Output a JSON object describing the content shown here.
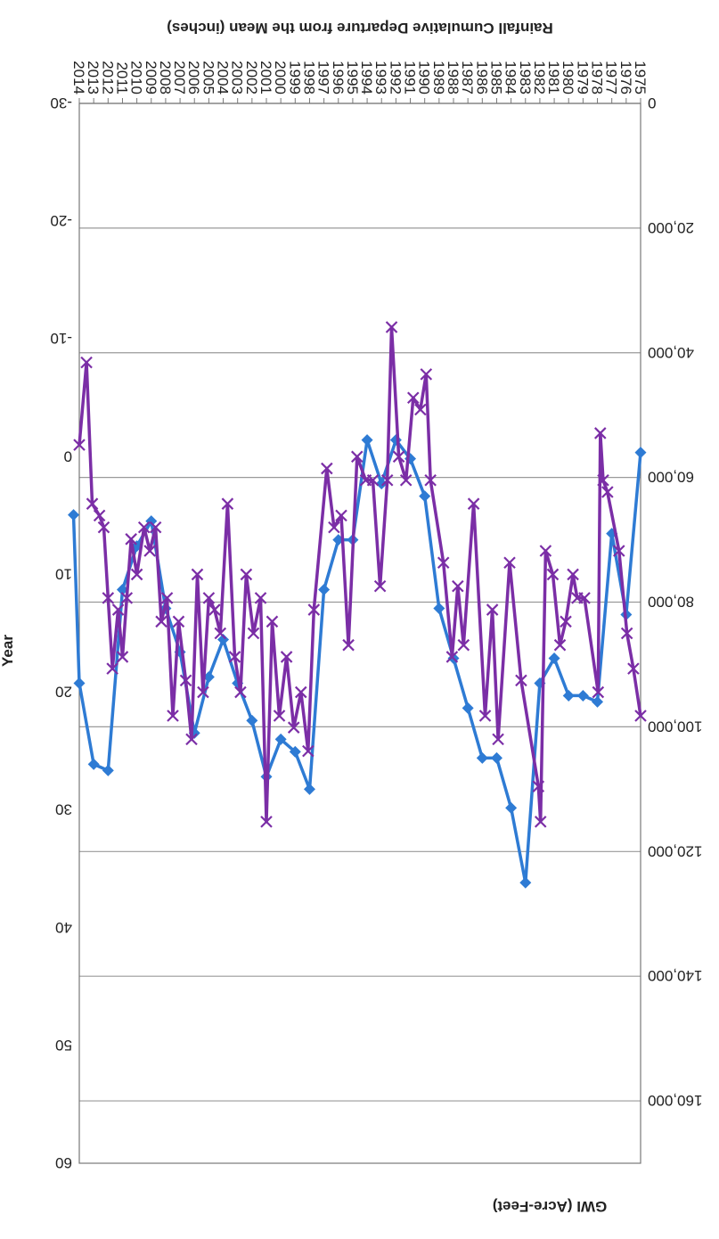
{
  "chart_data": {
    "type": "line",
    "orientation": "rotated-180",
    "xlabel": "Year",
    "ylabel_left": "GWI (Acre-Feet)",
    "ylabel_right": "Rainfall Cumulative Departure from the Mean (inches)",
    "x": [
      1975,
      1976,
      1977,
      1978,
      1979,
      1980,
      1981,
      1982,
      1983,
      1984,
      1985,
      1986,
      1987,
      1988,
      1989,
      1990,
      1991,
      1992,
      1993,
      1994,
      1995,
      1996,
      1997,
      1998,
      1999,
      2000,
      2001,
      2002,
      2003,
      2004,
      2005,
      2006,
      2007,
      2008,
      2009,
      2010,
      2011,
      2012,
      2013,
      2014
    ],
    "x_tick_labels": [
      "1975",
      "1976",
      "1977",
      "1978",
      "1979",
      "1980",
      "1981",
      "1982",
      "1983",
      "1984",
      "1985",
      "1986",
      "1987",
      "1988",
      "1989",
      "1990",
      "1991",
      "1992",
      "1993",
      "1994",
      "1995",
      "1996",
      "1997",
      "1998",
      "1999",
      "2000",
      "2001",
      "2002",
      "2003",
      "2004",
      "2005",
      "2006",
      "2007",
      "2008",
      "2009",
      "2010",
      "2011",
      "2012",
      "2013",
      "2014"
    ],
    "left_axis": {
      "range": [
        0,
        170000
      ],
      "ticks": [
        0,
        20000,
        40000,
        60000,
        80000,
        100000,
        120000,
        140000,
        160000
      ],
      "tick_labels": [
        "0",
        "20,000",
        "40,000",
        "60,000",
        "80,000",
        "100,000",
        "120,000",
        "140,000",
        "160,000"
      ]
    },
    "right_axis": {
      "range": [
        -30,
        60
      ],
      "ticks": [
        -30,
        -20,
        -10,
        0,
        10,
        20,
        30,
        40,
        50,
        60
      ],
      "tick_labels": [
        "-30",
        "-20",
        "-10",
        "0",
        "10",
        "20",
        "30",
        "40",
        "50",
        "60"
      ]
    },
    "grid": true,
    "series": [
      {
        "axis": "left",
        "color": "#2e7bd4",
        "marker": "diamond",
        "values": [
          [
            1975,
            56000
          ],
          [
            1976,
            82000
          ],
          [
            1977,
            69000
          ],
          [
            1978,
            96000
          ],
          [
            1979,
            95000
          ],
          [
            1980,
            95000
          ],
          [
            1981,
            89000
          ],
          [
            1982,
            93000
          ],
          [
            1983,
            125000
          ],
          [
            1984,
            113000
          ],
          [
            1985,
            105000
          ],
          [
            1986,
            105000
          ],
          [
            1987,
            97000
          ],
          [
            1988,
            89000
          ],
          [
            1989,
            81000
          ],
          [
            1990,
            63000
          ],
          [
            1991,
            57000
          ],
          [
            1992,
            54000
          ],
          [
            1993,
            61000
          ],
          [
            1994,
            54000
          ],
          [
            1995,
            70000
          ],
          [
            1996,
            70000
          ],
          [
            1997,
            78000
          ],
          [
            1998,
            110000
          ],
          [
            1999,
            104000
          ],
          [
            2000,
            102000
          ],
          [
            2001,
            108000
          ],
          [
            2002,
            99000
          ],
          [
            2003,
            93000
          ],
          [
            2004,
            86000
          ],
          [
            2005,
            92000
          ],
          [
            2006,
            101000
          ],
          [
            2007,
            88000
          ],
          [
            2008,
            81000
          ],
          [
            2009,
            67000
          ],
          [
            2010,
            71000
          ],
          [
            2011,
            78000
          ],
          [
            2012,
            107000
          ],
          [
            2013,
            106000
          ],
          [
            2014,
            93000
          ],
          [
            2014.4,
            66000
          ]
        ]
      },
      {
        "axis": "right",
        "color": "#7b2ea6",
        "marker": "x",
        "values": [
          [
            1975,
            22
          ],
          [
            1975.5,
            18
          ],
          [
            1975.95,
            15
          ],
          [
            1976.5,
            8
          ],
          [
            1977.3,
            3
          ],
          [
            1977.6,
            2
          ],
          [
            1977.8,
            -2
          ],
          [
            1977.95,
            20
          ],
          [
            1978.9,
            12
          ],
          [
            1979.4,
            12
          ],
          [
            1979.7,
            10
          ],
          [
            1980.2,
            14
          ],
          [
            1980.6,
            16
          ],
          [
            1981.1,
            10
          ],
          [
            1981.6,
            8
          ],
          [
            1981.95,
            31
          ],
          [
            1982.1,
            28
          ],
          [
            1983.3,
            19
          ],
          [
            1984.1,
            9
          ],
          [
            1984.9,
            24
          ],
          [
            1985.3,
            13
          ],
          [
            1985.8,
            22
          ],
          [
            1986.6,
            4
          ],
          [
            1987.3,
            16
          ],
          [
            1987.7,
            11
          ],
          [
            1988.1,
            17
          ],
          [
            1988.7,
            9
          ],
          [
            1989.6,
            2
          ],
          [
            1989.9,
            -7
          ],
          [
            1990.3,
            -4
          ],
          [
            1990.8,
            -5
          ],
          [
            1991.3,
            2
          ],
          [
            1991.8,
            0
          ],
          [
            1992.3,
            -11
          ],
          [
            1992.6,
            2
          ],
          [
            1993.1,
            11
          ],
          [
            1993.6,
            2
          ],
          [
            1994.1,
            2
          ],
          [
            1994.7,
            0
          ],
          [
            1995.3,
            16
          ],
          [
            1995.8,
            5
          ],
          [
            1996.3,
            6
          ],
          [
            1996.8,
            1
          ],
          [
            1997.7,
            13
          ],
          [
            1998.1,
            25
          ],
          [
            1998.6,
            20
          ],
          [
            1999.1,
            23
          ],
          [
            1999.6,
            17
          ],
          [
            2000.1,
            22
          ],
          [
            2000.6,
            14
          ],
          [
            2001.0,
            31
          ],
          [
            2001.4,
            12
          ],
          [
            2001.9,
            15
          ],
          [
            2002.4,
            10
          ],
          [
            2002.8,
            20
          ],
          [
            2003.2,
            17
          ],
          [
            2003.7,
            4
          ],
          [
            2004.2,
            15
          ],
          [
            2004.6,
            13
          ],
          [
            2005.0,
            12
          ],
          [
            2005.4,
            20
          ],
          [
            2005.8,
            10
          ],
          [
            2006.2,
            24
          ],
          [
            2006.6,
            19
          ],
          [
            2007.1,
            14
          ],
          [
            2007.5,
            22
          ],
          [
            2007.9,
            12
          ],
          [
            2008.3,
            14
          ],
          [
            2008.7,
            6
          ],
          [
            2009.1,
            8
          ],
          [
            2009.5,
            6
          ],
          [
            2010.0,
            10
          ],
          [
            2010.4,
            7
          ],
          [
            2010.7,
            12
          ],
          [
            2011.0,
            17
          ],
          [
            2011.3,
            13
          ],
          [
            2011.7,
            18
          ],
          [
            2012.0,
            12
          ],
          [
            2012.3,
            6
          ],
          [
            2012.6,
            5
          ],
          [
            2013.1,
            4
          ],
          [
            2013.5,
            -8
          ],
          [
            2014.0,
            -1
          ]
        ]
      }
    ]
  }
}
